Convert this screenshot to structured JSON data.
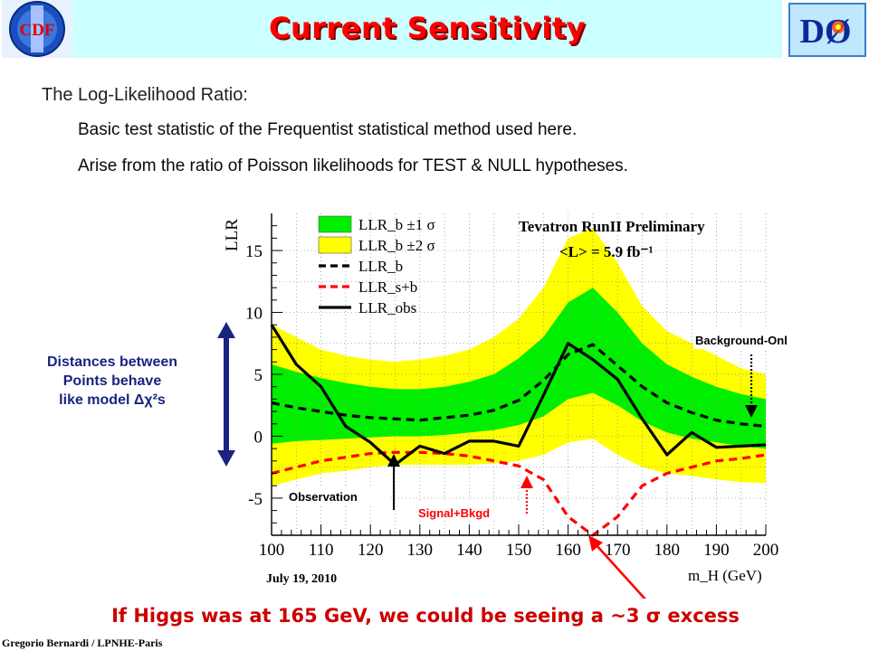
{
  "slide": {
    "title": "Current Sensitivity",
    "logo_left": "CDF",
    "logo_right": "DØ",
    "intro_heading": "The Log-Likelihood Ratio:",
    "intro_lines": [
      "Basic test statistic of the Frequentist statistical method used here.",
      "Arise from the ratio of Poisson likelihoods for TEST & NULL hypotheses."
    ],
    "side_note": [
      "Distances between",
      "Points behave",
      "like model Δχ²s"
    ],
    "caption": "If Higgs was at 165 GeV, we could be seeing a ~3 σ excess",
    "footer": "Gregorio Bernardi / LPNHE-Paris"
  },
  "chart_data": {
    "type": "line",
    "title": "Tevatron RunII Preliminary",
    "subtitle": "<L> = 5.9 fb⁻¹",
    "date_label": "July 19, 2010",
    "xlabel": "m_H (GeV)",
    "ylabel": "LLR",
    "xlim": [
      100,
      200
    ],
    "ylim": [
      -8,
      18
    ],
    "xticks": [
      100,
      110,
      120,
      130,
      140,
      150,
      160,
      170,
      180,
      190,
      200
    ],
    "yticks": [
      -5,
      0,
      5,
      10,
      15
    ],
    "grid": true,
    "legend_position": "top-left",
    "x": [
      100,
      105,
      110,
      115,
      120,
      125,
      130,
      135,
      140,
      145,
      150,
      155,
      160,
      165,
      170,
      175,
      180,
      185,
      190,
      195,
      200
    ],
    "bands": [
      {
        "name": "LLR_b ±2 σ",
        "color": "#ffff00",
        "upper": [
          9.0,
          8.0,
          7.0,
          6.5,
          6.2,
          6.0,
          6.2,
          6.5,
          7.0,
          8.0,
          9.5,
          12.0,
          16.0,
          16.8,
          14.0,
          10.5,
          8.5,
          7.5,
          6.5,
          5.5,
          5.0
        ],
        "lower": [
          -4.0,
          -3.5,
          -3.0,
          -2.8,
          -2.5,
          -2.3,
          -2.3,
          -2.3,
          -2.3,
          -2.2,
          -2.0,
          -1.5,
          -0.5,
          -0.2,
          -1.5,
          -2.5,
          -3.0,
          -3.2,
          -3.5,
          -3.7,
          -3.8
        ]
      },
      {
        "name": "LLR_b ±1 σ",
        "color": "#00ee00",
        "upper": [
          5.8,
          5.2,
          4.7,
          4.3,
          4.0,
          3.8,
          3.8,
          4.0,
          4.4,
          5.0,
          6.3,
          8.0,
          10.8,
          12.0,
          10.0,
          7.5,
          5.8,
          4.8,
          4.0,
          3.4,
          3.0
        ],
        "lower": [
          -0.6,
          -0.4,
          -0.3,
          -0.2,
          -0.1,
          0.0,
          0.0,
          0.1,
          0.3,
          0.5,
          0.9,
          1.6,
          3.0,
          3.5,
          2.5,
          1.2,
          0.3,
          -0.2,
          -0.5,
          -0.8,
          -1.0
        ]
      }
    ],
    "series": [
      {
        "name": "LLR_b",
        "style": "dashed",
        "color": "#000000",
        "values": [
          2.7,
          2.3,
          2.0,
          1.7,
          1.5,
          1.4,
          1.3,
          1.5,
          1.7,
          2.1,
          2.9,
          4.5,
          6.6,
          7.4,
          5.7,
          4.0,
          2.7,
          1.9,
          1.3,
          1.0,
          0.8
        ]
      },
      {
        "name": "LLR_s+b",
        "style": "dashed",
        "color": "#ff0000",
        "values": [
          -3.0,
          -2.5,
          -2.0,
          -1.7,
          -1.4,
          -1.3,
          -1.3,
          -1.4,
          -1.6,
          -2.0,
          -2.4,
          -3.5,
          -6.5,
          -8.0,
          -6.5,
          -4.0,
          -3.0,
          -2.5,
          -2.0,
          -1.8,
          -1.5
        ]
      },
      {
        "name": "LLR_obs",
        "style": "solid",
        "color": "#000000",
        "values": [
          9.0,
          5.8,
          4.0,
          0.8,
          -0.5,
          -2.3,
          -0.8,
          -1.4,
          -0.4,
          -0.4,
          -0.8,
          3.3,
          7.5,
          6.2,
          4.6,
          1.4,
          -1.5,
          0.3,
          -0.9,
          -0.8,
          -0.7
        ]
      }
    ],
    "annotations": [
      {
        "text": "Background-Only",
        "color": "#000000"
      },
      {
        "text": "Observation",
        "color": "#000000"
      },
      {
        "text": "Signal+Bkgd",
        "color": "#ff0000"
      }
    ]
  }
}
